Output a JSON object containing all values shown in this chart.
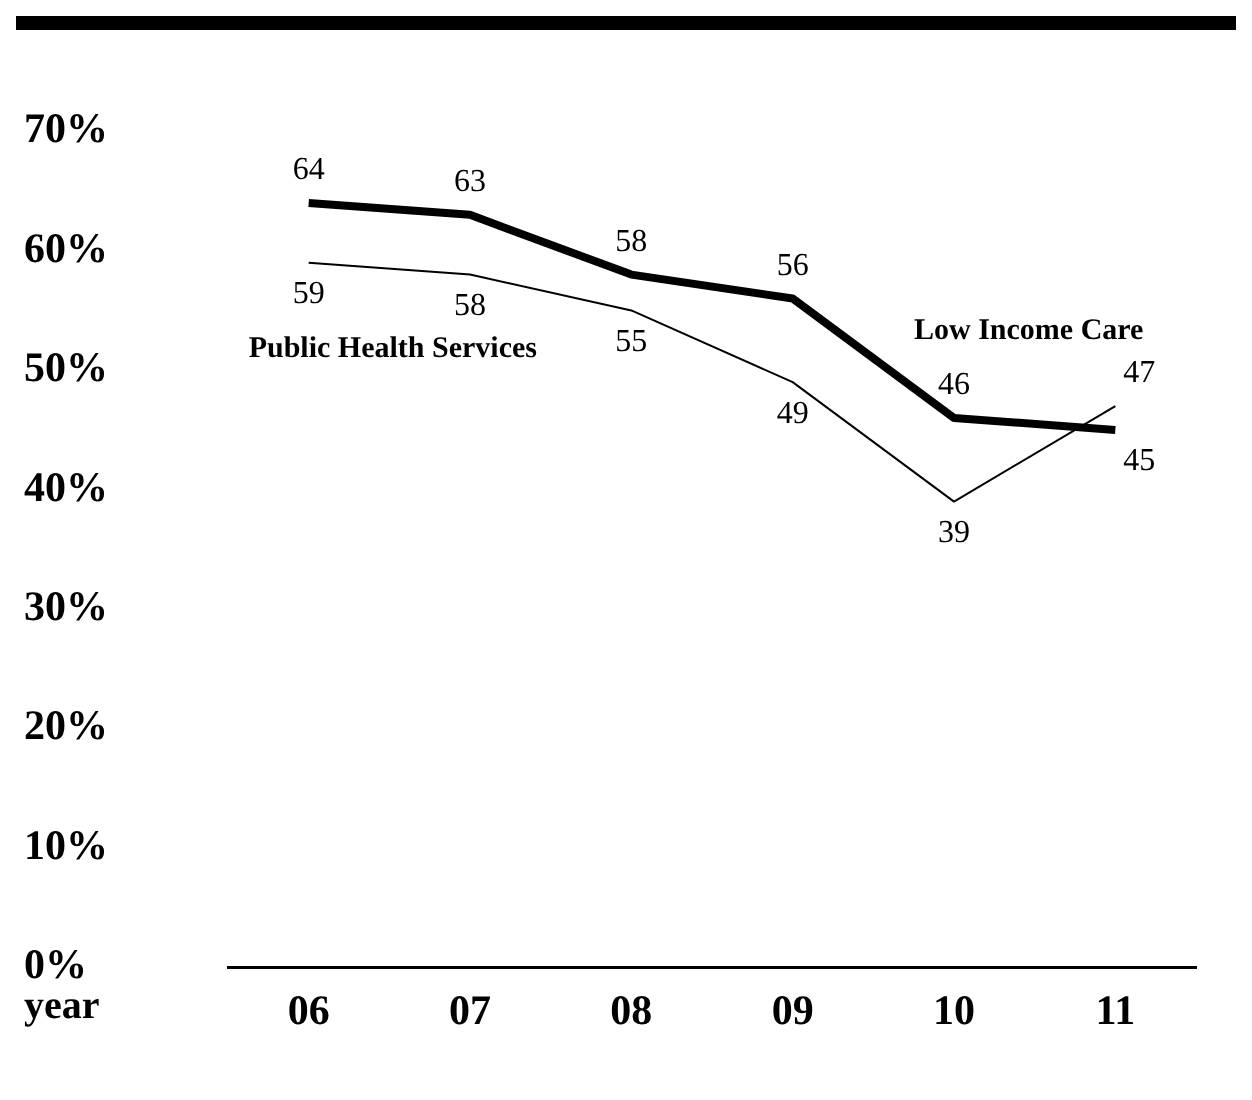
{
  "chart_data": {
    "type": "line",
    "xlabel": "year",
    "categories": [
      "06",
      "07",
      "08",
      "09",
      "10",
      "11"
    ],
    "series": [
      {
        "name": "Low Income Care",
        "color": "#000000",
        "values": [
          64,
          63,
          58,
          56,
          46,
          45
        ]
      },
      {
        "name": "Public Health Services",
        "color": "#000000",
        "values": [
          59,
          58,
          55,
          49,
          39,
          47
        ]
      }
    ],
    "ylim": [
      0,
      70
    ],
    "yticks": [
      {
        "value": 0,
        "label": "0%"
      },
      {
        "value": 10,
        "label": "10%"
      },
      {
        "value": 20,
        "label": "20%"
      },
      {
        "value": 30,
        "label": "30%"
      },
      {
        "value": 40,
        "label": "40%"
      },
      {
        "value": 50,
        "label": "50%"
      },
      {
        "value": 60,
        "label": "60%"
      },
      {
        "value": 70,
        "label": "70%"
      }
    ],
    "grid": false,
    "legend": false,
    "marker": "none",
    "line_style": "solid",
    "data_labels": true
  }
}
